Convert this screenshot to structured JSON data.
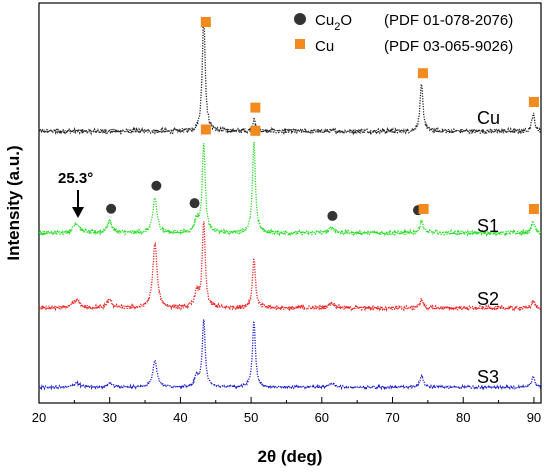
{
  "chart_data": {
    "type": "scatter",
    "xlabel": "2θ (deg)",
    "ylabel": "Intensity (a.u.)",
    "xlim": [
      20,
      91
    ],
    "xticks": [
      "20",
      "30",
      "40",
      "50",
      "60",
      "70",
      "80",
      "90"
    ],
    "grid": false,
    "legend_position": "top-right",
    "legend": [
      {
        "marker": "circle",
        "color": "#333333",
        "label_main": "Cu",
        "label_sub": "2",
        "label_tail": "O",
        "ref": "(PDF 01-078-2076)"
      },
      {
        "marker": "square",
        "color": "#f28a1e",
        "label_main": "Cu",
        "label_sub": "",
        "label_tail": "",
        "ref": "(PDF 03-065-9026)"
      }
    ],
    "annotation": {
      "label": "25.3°",
      "x": 25.3
    },
    "series": [
      {
        "name": "Cu",
        "color": "#222222",
        "background": 0.05,
        "noise": 0.02,
        "peaks": [
          [
            43.3,
            1.0,
            0.25
          ],
          [
            50.4,
            0.1,
            0.25
          ],
          [
            74.1,
            0.4,
            0.25
          ],
          [
            89.9,
            0.15,
            0.25
          ]
        ]
      },
      {
        "name": "S1",
        "color": "#22dd22",
        "background": 0.05,
        "noise": 0.02,
        "peaks": [
          [
            25.3,
            0.1,
            0.5
          ],
          [
            30.0,
            0.12,
            0.4
          ],
          [
            36.4,
            0.35,
            0.35
          ],
          [
            42.3,
            0.12,
            0.35
          ],
          [
            43.3,
            0.9,
            0.25
          ],
          [
            50.4,
            0.9,
            0.25
          ],
          [
            61.4,
            0.05,
            0.5
          ],
          [
            74.1,
            0.12,
            0.3
          ],
          [
            89.9,
            0.12,
            0.25
          ]
        ]
      },
      {
        "name": "S2",
        "color": "#ee2222",
        "background": 0.05,
        "noise": 0.02,
        "peaks": [
          [
            25.3,
            0.08,
            0.5
          ],
          [
            30.0,
            0.08,
            0.4
          ],
          [
            36.4,
            0.65,
            0.35
          ],
          [
            42.3,
            0.15,
            0.35
          ],
          [
            43.3,
            0.85,
            0.25
          ],
          [
            50.4,
            0.5,
            0.25
          ],
          [
            61.4,
            0.05,
            0.5
          ],
          [
            74.1,
            0.08,
            0.3
          ],
          [
            89.9,
            0.07,
            0.25
          ]
        ]
      },
      {
        "name": "S3",
        "color": "#1a1acc",
        "background": 0.05,
        "noise": 0.02,
        "peaks": [
          [
            25.3,
            0.08,
            0.5
          ],
          [
            30.0,
            0.07,
            0.4
          ],
          [
            36.4,
            0.5,
            0.35
          ],
          [
            42.3,
            0.18,
            0.35
          ],
          [
            43.3,
            1.2,
            0.25
          ],
          [
            50.4,
            1.2,
            0.25
          ],
          [
            61.4,
            0.07,
            0.5
          ],
          [
            74.1,
            0.2,
            0.3
          ],
          [
            89.9,
            0.2,
            0.25
          ]
        ]
      }
    ],
    "markers": [
      {
        "type": "square",
        "x": 43.6,
        "series": "Cu"
      },
      {
        "type": "square",
        "x": 50.6,
        "series": "Cu"
      },
      {
        "type": "square",
        "x": 74.3,
        "series": "Cu"
      },
      {
        "type": "square",
        "x": 90.0,
        "series": "Cu"
      },
      {
        "type": "circle",
        "x": 30.2,
        "series": "S1"
      },
      {
        "type": "circle",
        "x": 36.6,
        "series": "S1"
      },
      {
        "type": "circle",
        "x": 42.0,
        "series": "S1"
      },
      {
        "type": "square",
        "x": 43.6,
        "series": "S1"
      },
      {
        "type": "square",
        "x": 50.6,
        "series": "S1"
      },
      {
        "type": "circle",
        "x": 61.5,
        "series": "S1"
      },
      {
        "type": "circle",
        "x": 73.6,
        "series": "S1"
      },
      {
        "type": "square",
        "x": 74.4,
        "series": "S1"
      },
      {
        "type": "square",
        "x": 90.0,
        "series": "S1"
      }
    ]
  }
}
